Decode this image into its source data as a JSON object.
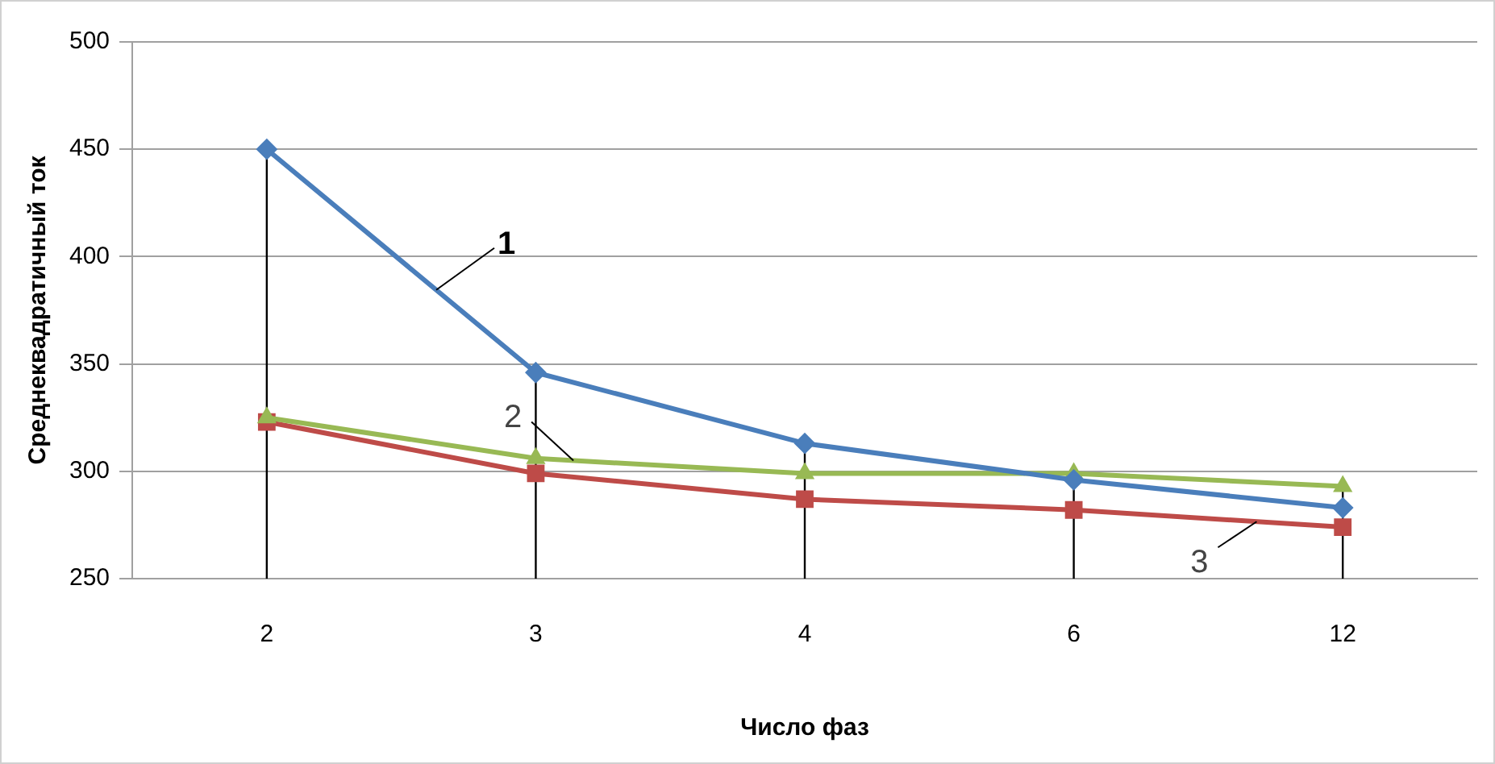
{
  "chart_data": {
    "type": "line",
    "xlabel": "Число фаз",
    "ylabel": "Среднеквадратичный ток",
    "categories": [
      "2",
      "3",
      "4",
      "6",
      "12"
    ],
    "series": [
      {
        "name": "1",
        "color": "#4a7ebb",
        "marker": "diamond",
        "values": [
          450,
          346,
          313,
          296,
          283
        ],
        "errors": [
          [
            250,
            450
          ],
          [
            250,
            346
          ],
          [
            250,
            313
          ],
          null,
          null
        ]
      },
      {
        "name": "2",
        "color": "#98b954",
        "marker": "triangle",
        "values": [
          325,
          306,
          299,
          299,
          293
        ],
        "errors": [
          null,
          null,
          null,
          [
            250,
            299
          ],
          [
            250,
            293
          ]
        ]
      },
      {
        "name": "3",
        "color": "#be4b48",
        "marker": "square",
        "values": [
          323,
          299,
          287,
          282,
          274
        ]
      }
    ],
    "ylim": [
      250,
      500
    ],
    "yticks": [
      250,
      300,
      350,
      400,
      450,
      500
    ],
    "grid": "y",
    "legend": false
  }
}
